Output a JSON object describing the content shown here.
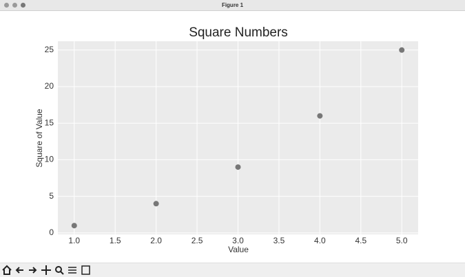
{
  "window": {
    "title": "Figure 1"
  },
  "chart_data": {
    "type": "scatter",
    "title": "Square Numbers",
    "x_label": "Value",
    "y_label": "Square of Value",
    "series": [
      {
        "x": [
          1,
          2,
          3,
          4,
          5
        ],
        "values": [
          1,
          4,
          9,
          16,
          25
        ],
        "color": "#777777"
      }
    ],
    "xlim": [
      0.8,
      5.2
    ],
    "xticks": [
      {
        "value": 1,
        "label": "1.0"
      },
      {
        "value": 1.5,
        "label": "1.5"
      },
      {
        "value": 2,
        "label": "2.0"
      },
      {
        "value": 2.5,
        "label": "2.5"
      },
      {
        "value": 3,
        "label": "3.0"
      },
      {
        "value": 3.5,
        "label": "3.5"
      },
      {
        "value": 4,
        "label": "4.0"
      },
      {
        "value": 4.5,
        "label": "4.5"
      },
      {
        "value": 5,
        "label": "5.0"
      }
    ],
    "ylim": [
      -0.2,
      26.2
    ],
    "yticks": [
      0,
      5,
      10,
      15,
      20,
      25
    ],
    "grid": true
  }
}
